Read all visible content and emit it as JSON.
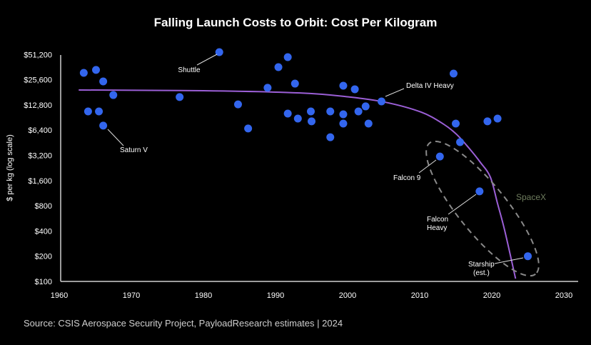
{
  "chart_data": {
    "type": "scatter",
    "title": "Falling Launch Costs to Orbit: Cost Per Kilogram",
    "xlabel": "",
    "ylabel": "$ per kg (log scale)",
    "xlim": [
      1960,
      2030
    ],
    "ylim": [
      100,
      51200
    ],
    "yscale": "log2",
    "grid": false,
    "x_ticks": [
      1960,
      1970,
      1980,
      1990,
      2000,
      2010,
      2020,
      2030
    ],
    "y_ticks": [
      {
        "value": 51200,
        "label": "$51,200"
      },
      {
        "value": 25600,
        "label": "$25,600"
      },
      {
        "value": 12800,
        "label": "$12,800"
      },
      {
        "value": 6400,
        "label": "$6,400"
      },
      {
        "value": 3200,
        "label": "$3,200"
      },
      {
        "value": 1600,
        "label": "$1,600"
      },
      {
        "value": 800,
        "label": "$800"
      },
      {
        "value": 400,
        "label": "$400"
      },
      {
        "value": 200,
        "label": "$200"
      },
      {
        "value": 100,
        "label": "$100"
      }
    ],
    "points": [
      {
        "x": 1963.4,
        "y": 30900
      },
      {
        "x": 1965.1,
        "y": 33500
      },
      {
        "x": 1966.1,
        "y": 24400
      },
      {
        "x": 1967.5,
        "y": 16800
      },
      {
        "x": 1964.0,
        "y": 10700
      },
      {
        "x": 1965.5,
        "y": 10700
      },
      {
        "x": 1966.1,
        "y": 7240,
        "label": "Saturn V"
      },
      {
        "x": 1976.7,
        "y": 15900
      },
      {
        "x": 1982.2,
        "y": 54600,
        "label": "Shuttle"
      },
      {
        "x": 1984.8,
        "y": 13000
      },
      {
        "x": 1986.2,
        "y": 6700
      },
      {
        "x": 1988.9,
        "y": 20500
      },
      {
        "x": 1990.4,
        "y": 36200
      },
      {
        "x": 1991.7,
        "y": 47600
      },
      {
        "x": 1992.7,
        "y": 23000
      },
      {
        "x": 1991.7,
        "y": 10100
      },
      {
        "x": 1993.1,
        "y": 8800
      },
      {
        "x": 1994.9,
        "y": 10700
      },
      {
        "x": 1995.0,
        "y": 8150
      },
      {
        "x": 1997.6,
        "y": 10700
      },
      {
        "x": 1997.6,
        "y": 5270
      },
      {
        "x": 1999.4,
        "y": 21700
      },
      {
        "x": 2001.0,
        "y": 19700
      },
      {
        "x": 1999.4,
        "y": 9900
      },
      {
        "x": 1999.4,
        "y": 7660
      },
      {
        "x": 2001.5,
        "y": 10700
      },
      {
        "x": 2002.5,
        "y": 12300
      },
      {
        "x": 2002.9,
        "y": 7660
      },
      {
        "x": 2004.7,
        "y": 14100,
        "label": "Delta IV Heavy"
      },
      {
        "x": 2014.7,
        "y": 30300
      },
      {
        "x": 2015.0,
        "y": 7660
      },
      {
        "x": 2015.6,
        "y": 4600
      },
      {
        "x": 2019.4,
        "y": 8150
      },
      {
        "x": 2020.8,
        "y": 8800
      },
      {
        "x": 2012.8,
        "y": 3100,
        "label": "Falcon 9"
      },
      {
        "x": 2018.3,
        "y": 1190,
        "label": "Falcon Heavy"
      },
      {
        "x": 2025.0,
        "y": 200,
        "label": "Starship (est.)"
      }
    ],
    "trend_line": [
      [
        1962.7,
        19300
      ],
      [
        1980,
        18900
      ],
      [
        1993.4,
        17800
      ],
      [
        2000,
        16000
      ],
      [
        2005.2,
        13800
      ],
      [
        2010.2,
        10500
      ],
      [
        2013.2,
        7660
      ],
      [
        2015.1,
        5720
      ],
      [
        2016.8,
        3940
      ],
      [
        2018.4,
        2650
      ],
      [
        2019.8,
        1760
      ],
      [
        2020.8,
        850
      ],
      [
        2021.8,
        403
      ],
      [
        2023.3,
        108
      ]
    ],
    "group_annotation": "SpaceX",
    "annotations": {
      "shuttle": "Shuttle",
      "saturn_v": "Saturn V",
      "delta_iv_heavy": "Delta IV Heavy",
      "falcon_9": "Falcon 9",
      "falcon_heavy_1": "Falcon",
      "falcon_heavy_2": "Heavy",
      "starship_1": "Starship",
      "starship_2": "(est.)"
    },
    "source": "Source: CSIS Aerospace Security Project, PayloadResearch estimates | 2024",
    "colors": {
      "background": "#000000",
      "points": "#3366ee",
      "trend": "#9b5fd6",
      "spacex": "#6f7d5e",
      "axis": "#cfcfcf",
      "text": "#ffffff"
    }
  }
}
